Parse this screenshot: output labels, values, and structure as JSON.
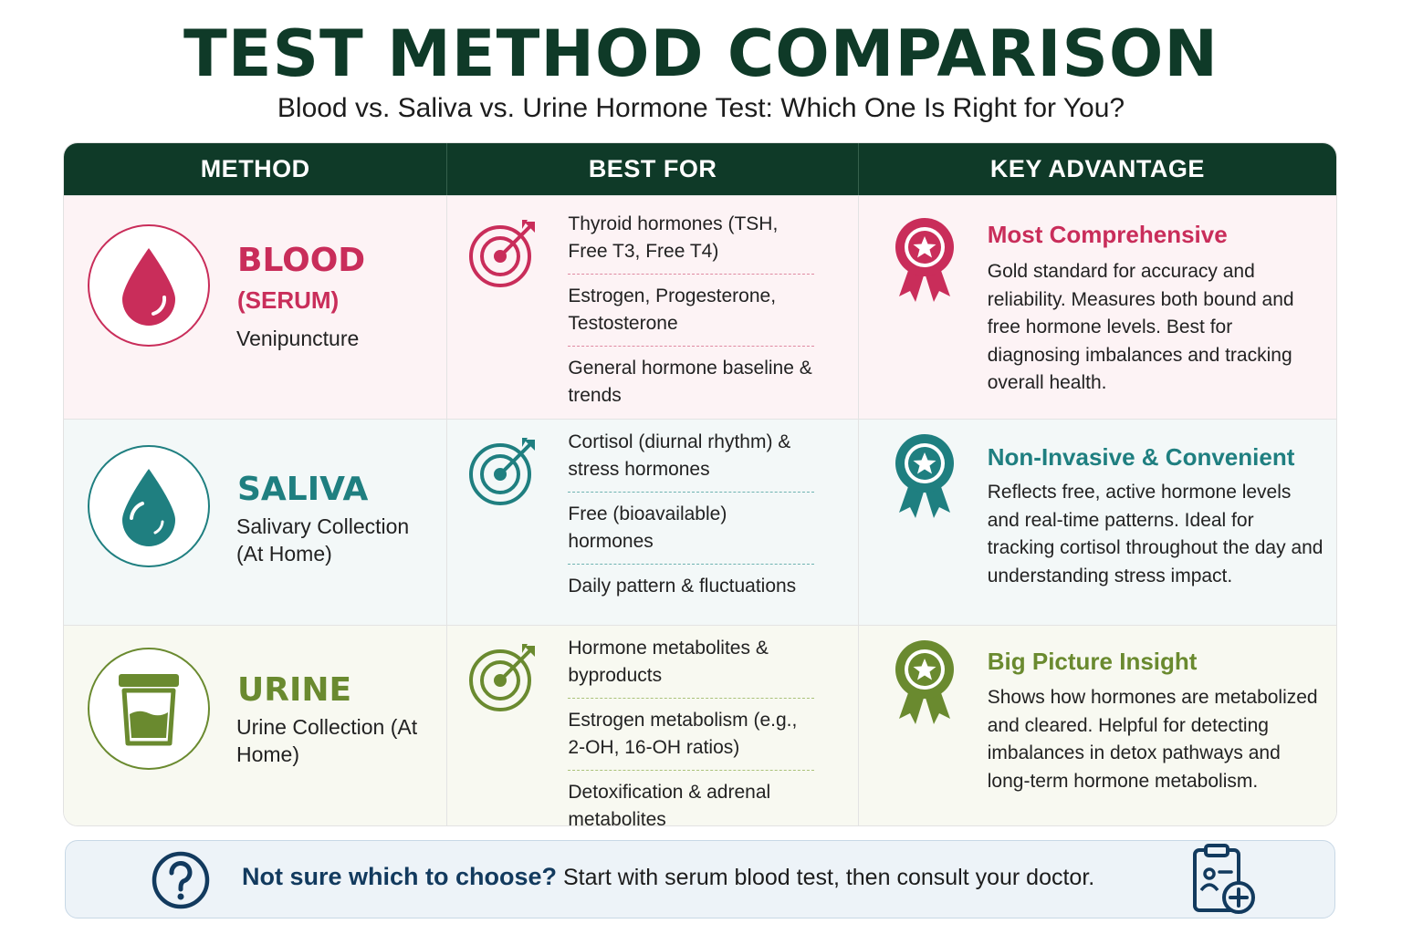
{
  "header": {
    "title": "TEST METHOD COMPARISON",
    "subtitle": "Blood vs. Saliva vs. Urine Hormone Test: Which One Is Right for You?"
  },
  "columns": [
    "METHOD",
    "BEST FOR",
    "KEY ADVANTAGE"
  ],
  "colors": {
    "header_bg": "#0f3a28",
    "blood": "#c92d5a",
    "saliva": "#1f7f80",
    "urine": "#6a8a2f",
    "footer_accent": "#123a5e"
  },
  "rows": [
    {
      "method": "BLOOD",
      "method_sub": "(SERUM)",
      "method_desc": "Venipuncture",
      "icon": "blood-drop-icon",
      "best_for": [
        "Thyroid hormones (TSH, Free T3, Free T4)",
        "Estrogen, Progesterone, Testosterone",
        "General hormone baseline & trends"
      ],
      "advantage_title": "Most Comprehensive",
      "advantage_text": "Gold standard for accuracy and reliability. Measures both bound and free hormone levels. Best for diagnosing imbalances and tracking overall health."
    },
    {
      "method": "SALIVA",
      "method_desc": "Salivary Collection (At Home)",
      "icon": "saliva-drop-icon",
      "best_for": [
        "Cortisol (diurnal rhythm) & stress hormones",
        "Free (bioavailable) hormones",
        "Daily pattern & fluctuations"
      ],
      "advantage_title": "Non-Invasive & Convenient",
      "advantage_text": "Reflects free, active hormone levels and real-time patterns. Ideal for tracking cortisol throughout the day and understanding stress impact."
    },
    {
      "method": "URINE",
      "method_desc": "Urine Collection (At Home)",
      "icon": "urine-cup-icon",
      "best_for": [
        "Hormone metabolites & byproducts",
        "Estrogen metabolism (e.g., 2-OH, 16-OH ratios)",
        "Detoxification & adrenal metabolites"
      ],
      "advantage_title": "Big Picture Insight",
      "advantage_text": "Shows how hormones are metabolized and cleared. Helpful for detecting imbalances in detox pathways and long-term hormone metabolism."
    }
  ],
  "footer": {
    "question": "Not sure which to choose?",
    "advice": "Start with serum blood test, then consult your doctor."
  }
}
